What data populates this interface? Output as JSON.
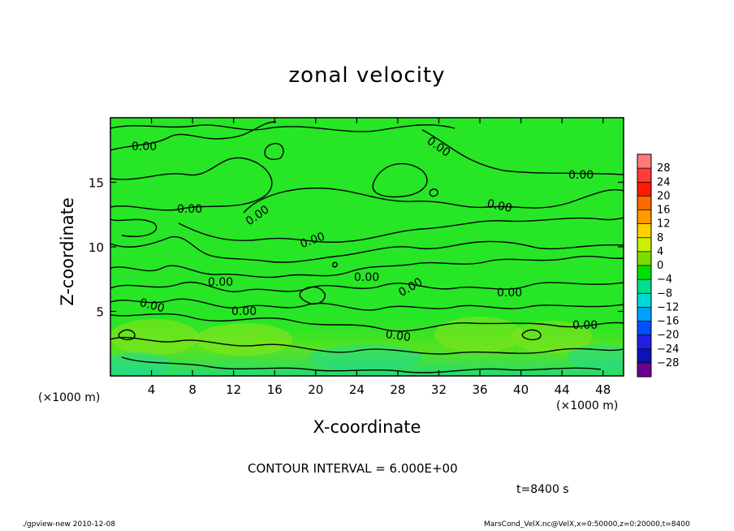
{
  "chart_data": {
    "type": "heatmap",
    "title": "zonal velocity",
    "xlabel": "X-coordinate",
    "ylabel": "Z-coordinate",
    "x_unit_label": "(×1000 m)",
    "xlim": [
      0,
      50
    ],
    "ylim": [
      0,
      20
    ],
    "x_ticks": [
      4,
      8,
      12,
      16,
      20,
      24,
      28,
      32,
      36,
      40,
      44,
      48
    ],
    "y_ticks": [
      5,
      10,
      15
    ],
    "contour_label": "0.00",
    "contour_interval_text": "CONTOUR INTERVAL = 6.000E+00",
    "time_text": "t=8400 s",
    "colorbar": {
      "labels": [
        "28",
        "24",
        "20",
        "16",
        "12",
        "8",
        "4",
        "0",
        "−4",
        "−8",
        "−12",
        "−16",
        "−20",
        "−24",
        "−28"
      ],
      "colors": [
        "#ff7a7a",
        "#ff3c3c",
        "#ff1a00",
        "#ff6a00",
        "#ff9a00",
        "#ffd000",
        "#c8f000",
        "#7ddc00",
        "#00e000",
        "#00e08a",
        "#00d8d8",
        "#00a0ff",
        "#0050ff",
        "#2020e0",
        "#1010b8",
        "#700090"
      ]
    },
    "grid": false,
    "legend": "colorbar-right"
  },
  "footer": {
    "left": "./gpview-new  2010-12-08",
    "right": "MarsCond_VelX.nc@VelX,x=0:50000,z=0:20000,t=8400"
  }
}
